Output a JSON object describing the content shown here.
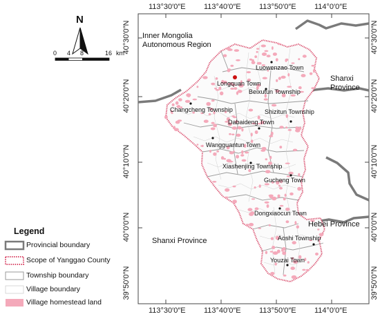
{
  "lon_labels": [
    "113°30′0″E",
    "113°40′0″E",
    "113°50′0″E",
    "114°0′0″E"
  ],
  "lat_labels": [
    "40°30′0″N",
    "40°20′0″N",
    "40°10′0″N",
    "40°0′0″N",
    "39°50′0″N"
  ],
  "regions": {
    "inner_mongolia": "Inner Mongolia\nAutonomous Region",
    "shanxi_east": "Shanxi\nProvince",
    "shanxi_south": "Shanxi Province",
    "hebei": "Hebei Province"
  },
  "towns": {
    "luowenzao": "Luowenzao Town",
    "longquan": "Longquan Town",
    "beixutun": "Beixutun Township",
    "changcheng": "Changcheng Township",
    "shizitun": "Shizitun Township",
    "dabaideng": "Dabaideng Town",
    "wangguantun": "Wangguantun Town",
    "xiashenjing": "Xiashenjing Township",
    "gucheng": "Gucheng Town",
    "dongxiaocun": "Dongxiaocun Town",
    "aoshi": "Aoshi Township",
    "youzai": "Youzai Town"
  },
  "north_arrow": "N",
  "scale_bar": {
    "ticks": [
      "0",
      "4",
      "8",
      "16"
    ],
    "unit": "km"
  },
  "legend": {
    "title": "Legend",
    "items": [
      "Provincial boundary",
      "Scope of Yanggao County",
      "Township boundary",
      "Village boundary",
      "Village homestead land"
    ]
  },
  "colors": {
    "provincial": "#7a7a7a",
    "county": "#d94a6a",
    "homestead": "#f4a9ba",
    "township": "#9a9a9a",
    "seat": "#cc1111"
  }
}
